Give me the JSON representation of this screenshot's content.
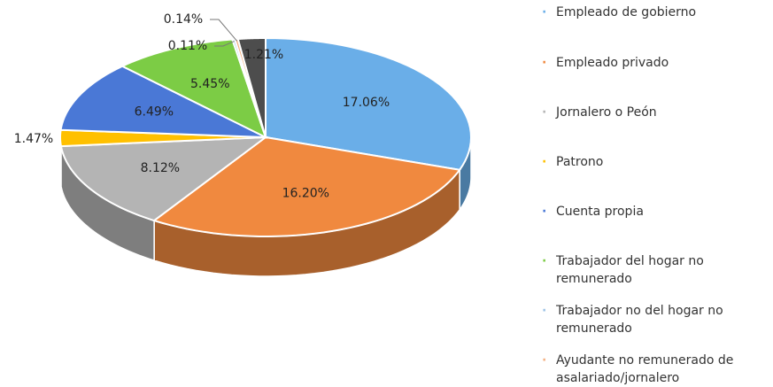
{
  "chart_data": {
    "type": "pie3d",
    "categories": [
      "Empleado de gobierno",
      "Empleado privado",
      "Jornalero o Peón",
      "Patrono",
      "Cuenta propia",
      "Trabajador del hogar no remunerado",
      "Trabajador no del hogar no remunerado",
      "Ayudante no remunerado de asalariado/jornalero",
      null
    ],
    "values": [
      17.06,
      16.2,
      8.12,
      1.47,
      6.49,
      5.45,
      0.11,
      0.14,
      1.21
    ],
    "value_labels": [
      "17.06%",
      "16.20%",
      "8.12%",
      "1.47%",
      "6.49%",
      "5.45%",
      "0.11%",
      "0.14%",
      "1.21%"
    ],
    "colors": [
      "#6aaee8",
      "#f0893f",
      "#b4b4b4",
      "#ffc000",
      "#4a78d6",
      "#7ccc45",
      "#9dc3e6",
      "#f4b183",
      "#4d4d4d"
    ]
  }
}
